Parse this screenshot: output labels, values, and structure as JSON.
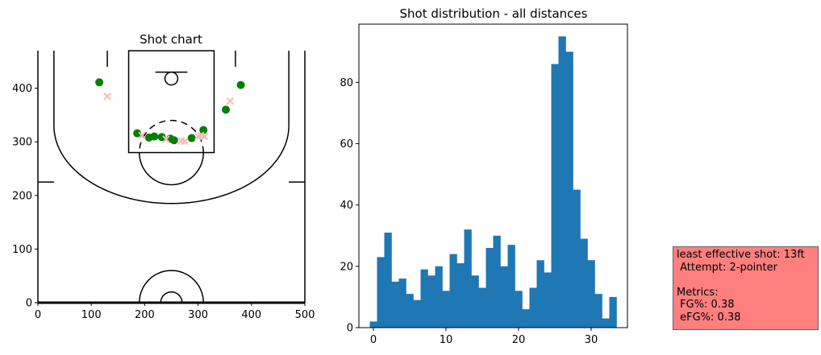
{
  "chart_data": [
    {
      "type": "scatter",
      "title": "Shot chart",
      "xlim": [
        0,
        500
      ],
      "ylim": [
        0,
        470
      ],
      "xticks": [
        "0",
        "100",
        "200",
        "300",
        "400",
        "500"
      ],
      "yticks": [
        "0",
        "100",
        "200",
        "300",
        "400"
      ],
      "background": "half-court diagram",
      "series": [
        {
          "marker": "circle",
          "color": "#008000",
          "points": [
            {
              "x": 115,
              "y": 411
            },
            {
              "x": 380,
              "y": 406
            },
            {
              "x": 352,
              "y": 360
            },
            {
              "x": 186,
              "y": 316
            },
            {
              "x": 310,
              "y": 322
            },
            {
              "x": 208,
              "y": 308
            },
            {
              "x": 218,
              "y": 310
            },
            {
              "x": 232,
              "y": 309
            },
            {
              "x": 248,
              "y": 306
            },
            {
              "x": 255,
              "y": 303
            },
            {
              "x": 288,
              "y": 307
            }
          ]
        },
        {
          "marker": "x",
          "color": "#ffb6b6",
          "points": [
            {
              "x": 130,
              "y": 385
            },
            {
              "x": 360,
              "y": 376
            },
            {
              "x": 195,
              "y": 312
            },
            {
              "x": 240,
              "y": 305
            },
            {
              "x": 268,
              "y": 302
            },
            {
              "x": 275,
              "y": 301
            },
            {
              "x": 300,
              "y": 310
            },
            {
              "x": 305,
              "y": 312
            },
            {
              "x": 312,
              "y": 310
            }
          ]
        }
      ]
    },
    {
      "type": "bar",
      "title": "Shot distribution - all distances",
      "color": "#1f77b4",
      "xlim": [
        -2,
        35
      ],
      "ylim": [
        0,
        99
      ],
      "xticks": [
        "0",
        "10",
        "20",
        "30"
      ],
      "yticks": [
        "0",
        "20",
        "40",
        "60",
        "80"
      ],
      "bin_start": -0.5,
      "bin_width": 1,
      "values": [
        2,
        23,
        31,
        15,
        16,
        11,
        9,
        19,
        17,
        20,
        12,
        24,
        21,
        32,
        17,
        13,
        26,
        30,
        20,
        27,
        12,
        6,
        13,
        22,
        18,
        86,
        95,
        90,
        45,
        29,
        22,
        11,
        3,
        10
      ]
    }
  ],
  "infobox": {
    "line1": "least effective shot: 13ft",
    "line2": " Attempt: 2-pointer",
    "line3": "Metrics:",
    "line4": " FG%: 0.38",
    "line5": " eFG%: 0.38",
    "color": "#ff7f7f"
  }
}
